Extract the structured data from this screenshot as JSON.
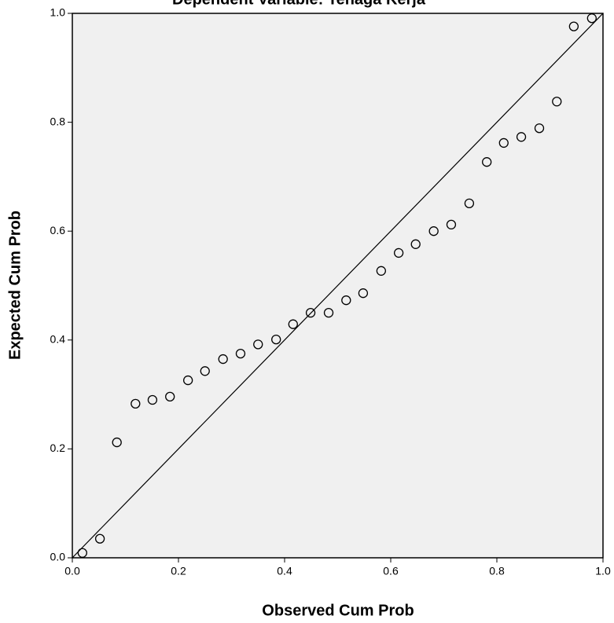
{
  "chart_data": {
    "type": "scatter",
    "title": "Dependent Variable: Tenaga Kerja",
    "x_label": "Observed Cum Prob",
    "y_label": "Expected Cum Prob",
    "x": [
      0.019,
      0.052,
      0.084,
      0.119,
      0.151,
      0.184,
      0.218,
      0.25,
      0.284,
      0.317,
      0.35,
      0.384,
      0.416,
      0.449,
      0.483,
      0.516,
      0.548,
      0.582,
      0.615,
      0.647,
      0.681,
      0.714,
      0.748,
      0.781,
      0.813,
      0.846,
      0.88,
      0.913,
      0.945,
      0.979
    ],
    "values": [
      0.009,
      0.035,
      0.212,
      0.283,
      0.29,
      0.296,
      0.326,
      0.343,
      0.365,
      0.375,
      0.392,
      0.401,
      0.429,
      0.45,
      0.45,
      0.473,
      0.486,
      0.527,
      0.56,
      0.576,
      0.6,
      0.612,
      0.651,
      0.727,
      0.762,
      0.773,
      0.789,
      0.838,
      0.976,
      0.991
    ],
    "color": "#000000",
    "background": "#f0f0f0",
    "reference_line": true,
    "xlim": [
      0,
      1
    ],
    "ylim": [
      0,
      1
    ],
    "xticks": [
      {
        "value": 0,
        "label": "0.0"
      },
      {
        "value": 0.2,
        "label": "0.2"
      },
      {
        "value": 0.4,
        "label": "0.4"
      },
      {
        "value": 0.6,
        "label": "0.6"
      },
      {
        "value": 0.8,
        "label": "0.8"
      },
      {
        "value": 1,
        "label": "1.0"
      }
    ],
    "yticks": [
      {
        "value": 0,
        "label": "0.0"
      },
      {
        "value": 0.2,
        "label": "0.2"
      },
      {
        "value": 0.4,
        "label": "0.4"
      },
      {
        "value": 0.6,
        "label": "0.6"
      },
      {
        "value": 0.8,
        "label": "0.8"
      },
      {
        "value": 1,
        "label": "1.0"
      }
    ]
  }
}
